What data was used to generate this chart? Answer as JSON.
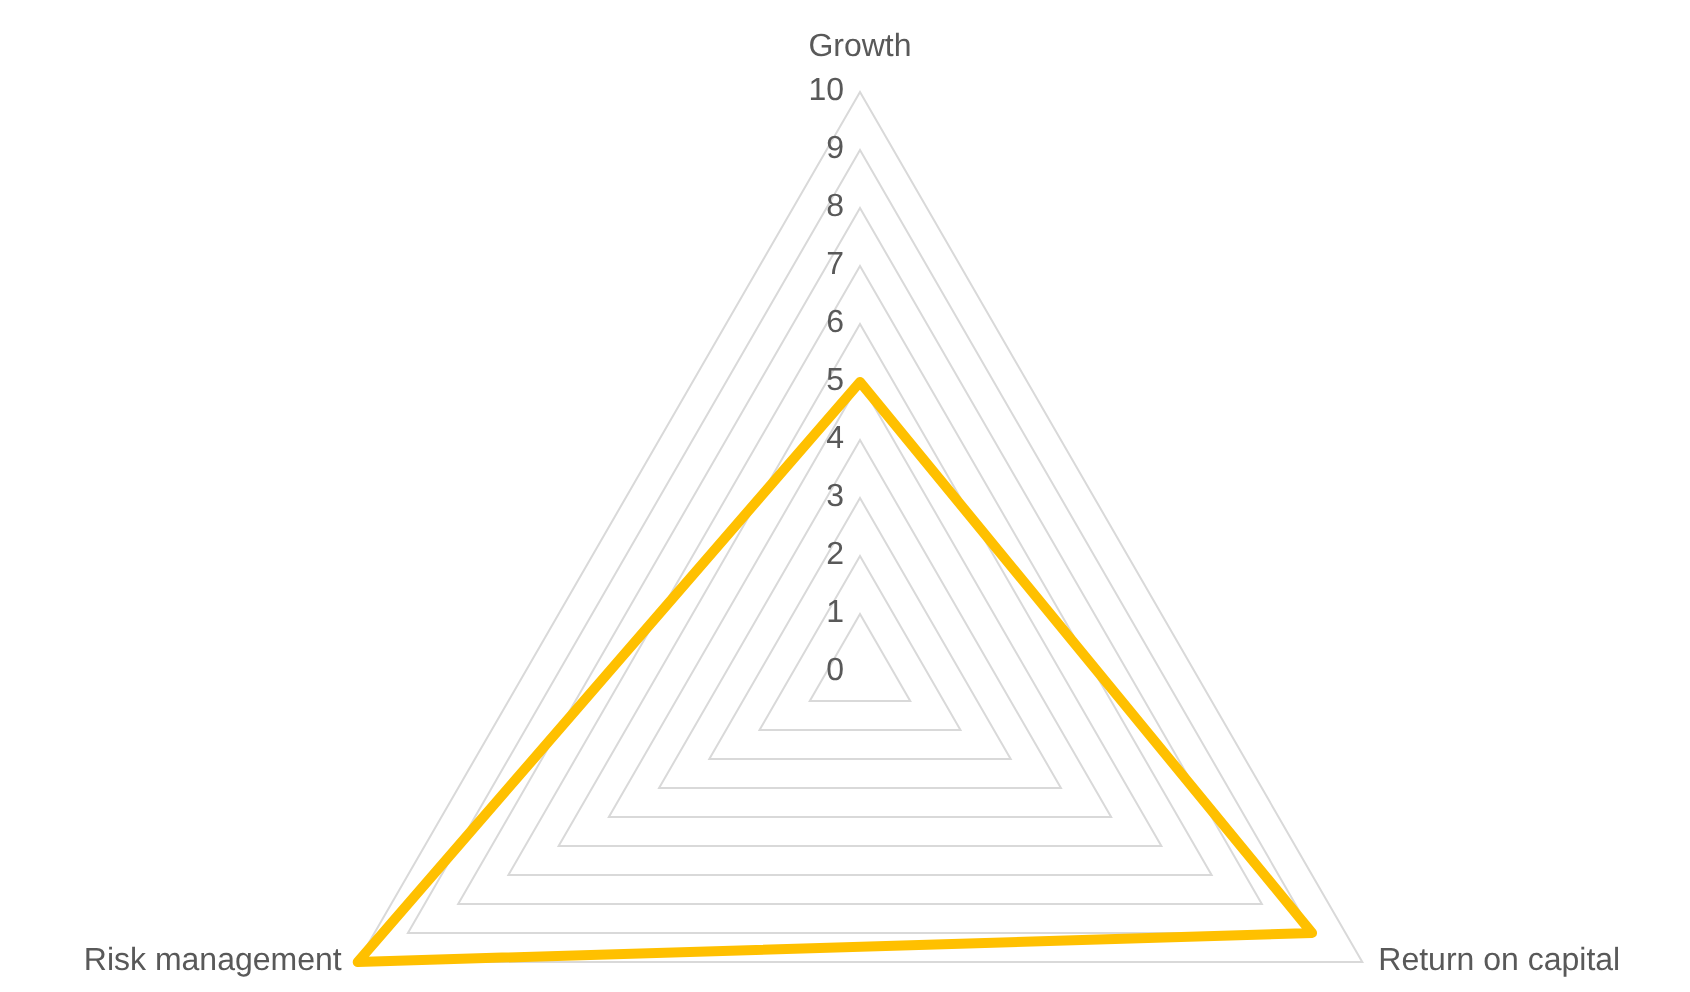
{
  "chart_data": {
    "type": "radar",
    "categories": [
      "Growth",
      "Return on capital",
      "Risk management"
    ],
    "series": [
      {
        "color": "#ffc000",
        "values": [
          5,
          9,
          10
        ]
      }
    ],
    "ylim": [
      0,
      10
    ],
    "yticks": [
      0,
      1,
      2,
      3,
      4,
      5,
      6,
      7,
      8,
      9,
      10
    ],
    "grid": true
  }
}
